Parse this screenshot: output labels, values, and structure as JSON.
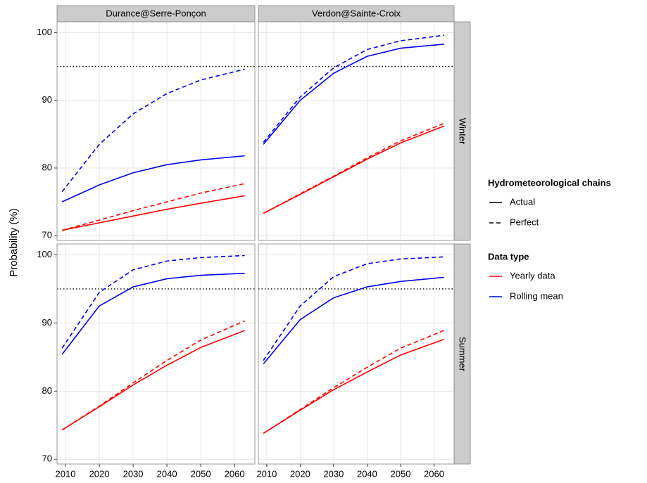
{
  "y_label": "Probability (%)",
  "facets": {
    "cols": [
      "Durance@Serre-Ponçon",
      "Verdon@Sainte-Croix"
    ],
    "rows": [
      "Winter",
      "Summer"
    ]
  },
  "legends": [
    {
      "title": "Hydrometeorological chains",
      "items": [
        {
          "label": "Actual",
          "dash": "solid",
          "color": "#000000"
        },
        {
          "label": "Perfect",
          "dash": "dashed",
          "color": "#000000"
        }
      ]
    },
    {
      "title": "Data type",
      "items": [
        {
          "label": "Yearly data",
          "dash": "solid",
          "color": "#ff0000"
        },
        {
          "label": "Rolling mean",
          "dash": "solid",
          "color": "#0000ee"
        }
      ]
    }
  ],
  "chart_data": [
    {
      "type": "line",
      "x": [
        2009,
        2020,
        2030,
        2040,
        2050,
        2063
      ],
      "xlim": [
        2007.5,
        2066
      ],
      "xticks": [
        2010,
        2020,
        2030,
        2040,
        2050,
        2060
      ],
      "ylim": [
        69.3,
        101.6
      ],
      "yticks": [
        70,
        80,
        90,
        100
      ],
      "grid": true,
      "hline": 95,
      "series": [
        {
          "color": "#0000ee",
          "dash": "dashed",
          "values": [
            76.5,
            83.5,
            88,
            91,
            93,
            94.6
          ]
        },
        {
          "color": "#0000ee",
          "dash": "solid",
          "values": [
            75,
            77.5,
            79.3,
            80.5,
            81.2,
            81.8
          ]
        },
        {
          "color": "#ff0000",
          "dash": "dashed",
          "values": [
            70.8,
            72.3,
            73.7,
            75,
            76.3,
            77.7
          ]
        },
        {
          "color": "#ff0000",
          "dash": "solid",
          "values": [
            70.8,
            71.9,
            72.9,
            73.9,
            74.8,
            75.9
          ]
        }
      ]
    },
    {
      "type": "line",
      "x": [
        2009,
        2020,
        2030,
        2040,
        2050,
        2063
      ],
      "xlim": [
        2007.5,
        2066
      ],
      "xticks": [
        2010,
        2020,
        2030,
        2040,
        2050,
        2060
      ],
      "ylim": [
        69.3,
        101.6
      ],
      "yticks": [
        70,
        80,
        90,
        100
      ],
      "grid": true,
      "hline": 95,
      "series": [
        {
          "color": "#0000ee",
          "dash": "dashed",
          "values": [
            83.8,
            90.5,
            94.8,
            97.5,
            98.8,
            99.6
          ]
        },
        {
          "color": "#0000ee",
          "dash": "solid",
          "values": [
            83.5,
            90,
            94,
            96.5,
            97.7,
            98.3
          ]
        },
        {
          "color": "#ff0000",
          "dash": "dashed",
          "values": [
            73.3,
            76.2,
            78.8,
            81.5,
            84,
            86.6
          ]
        },
        {
          "color": "#ff0000",
          "dash": "solid",
          "values": [
            73.3,
            76.1,
            78.7,
            81.3,
            83.7,
            86.2
          ]
        }
      ]
    },
    {
      "type": "line",
      "x": [
        2009,
        2020,
        2030,
        2040,
        2050,
        2063
      ],
      "xlim": [
        2007.5,
        2066
      ],
      "xticks": [
        2010,
        2020,
        2030,
        2040,
        2050,
        2060
      ],
      "ylim": [
        69.3,
        101.6
      ],
      "yticks": [
        70,
        80,
        90,
        100
      ],
      "grid": true,
      "hline": 95,
      "series": [
        {
          "color": "#0000ee",
          "dash": "dashed",
          "values": [
            86.3,
            94.5,
            97.8,
            99.1,
            99.6,
            99.9
          ]
        },
        {
          "color": "#0000ee",
          "dash": "solid",
          "values": [
            85.4,
            92.5,
            95.3,
            96.5,
            97,
            97.3
          ]
        },
        {
          "color": "#ff0000",
          "dash": "dashed",
          "values": [
            74.3,
            77.8,
            81.2,
            84.5,
            87.5,
            90.3
          ]
        },
        {
          "color": "#ff0000",
          "dash": "solid",
          "values": [
            74.3,
            77.7,
            80.9,
            83.8,
            86.4,
            88.9
          ]
        }
      ]
    },
    {
      "type": "line",
      "x": [
        2009,
        2020,
        2030,
        2040,
        2050,
        2063
      ],
      "xlim": [
        2007.5,
        2066
      ],
      "xticks": [
        2010,
        2020,
        2030,
        2040,
        2050,
        2060
      ],
      "ylim": [
        69.3,
        101.6
      ],
      "yticks": [
        70,
        80,
        90,
        100
      ],
      "grid": true,
      "hline": 95,
      "series": [
        {
          "color": "#0000ee",
          "dash": "dashed",
          "values": [
            84.5,
            92.5,
            96.8,
            98.7,
            99.4,
            99.7
          ]
        },
        {
          "color": "#0000ee",
          "dash": "solid",
          "values": [
            84,
            90.5,
            93.7,
            95.3,
            96.1,
            96.7
          ]
        },
        {
          "color": "#ff0000",
          "dash": "dashed",
          "values": [
            73.8,
            77.3,
            80.5,
            83.5,
            86.3,
            88.9
          ]
        },
        {
          "color": "#ff0000",
          "dash": "solid",
          "values": [
            73.8,
            77.2,
            80.2,
            82.8,
            85.3,
            87.6
          ]
        }
      ]
    }
  ]
}
